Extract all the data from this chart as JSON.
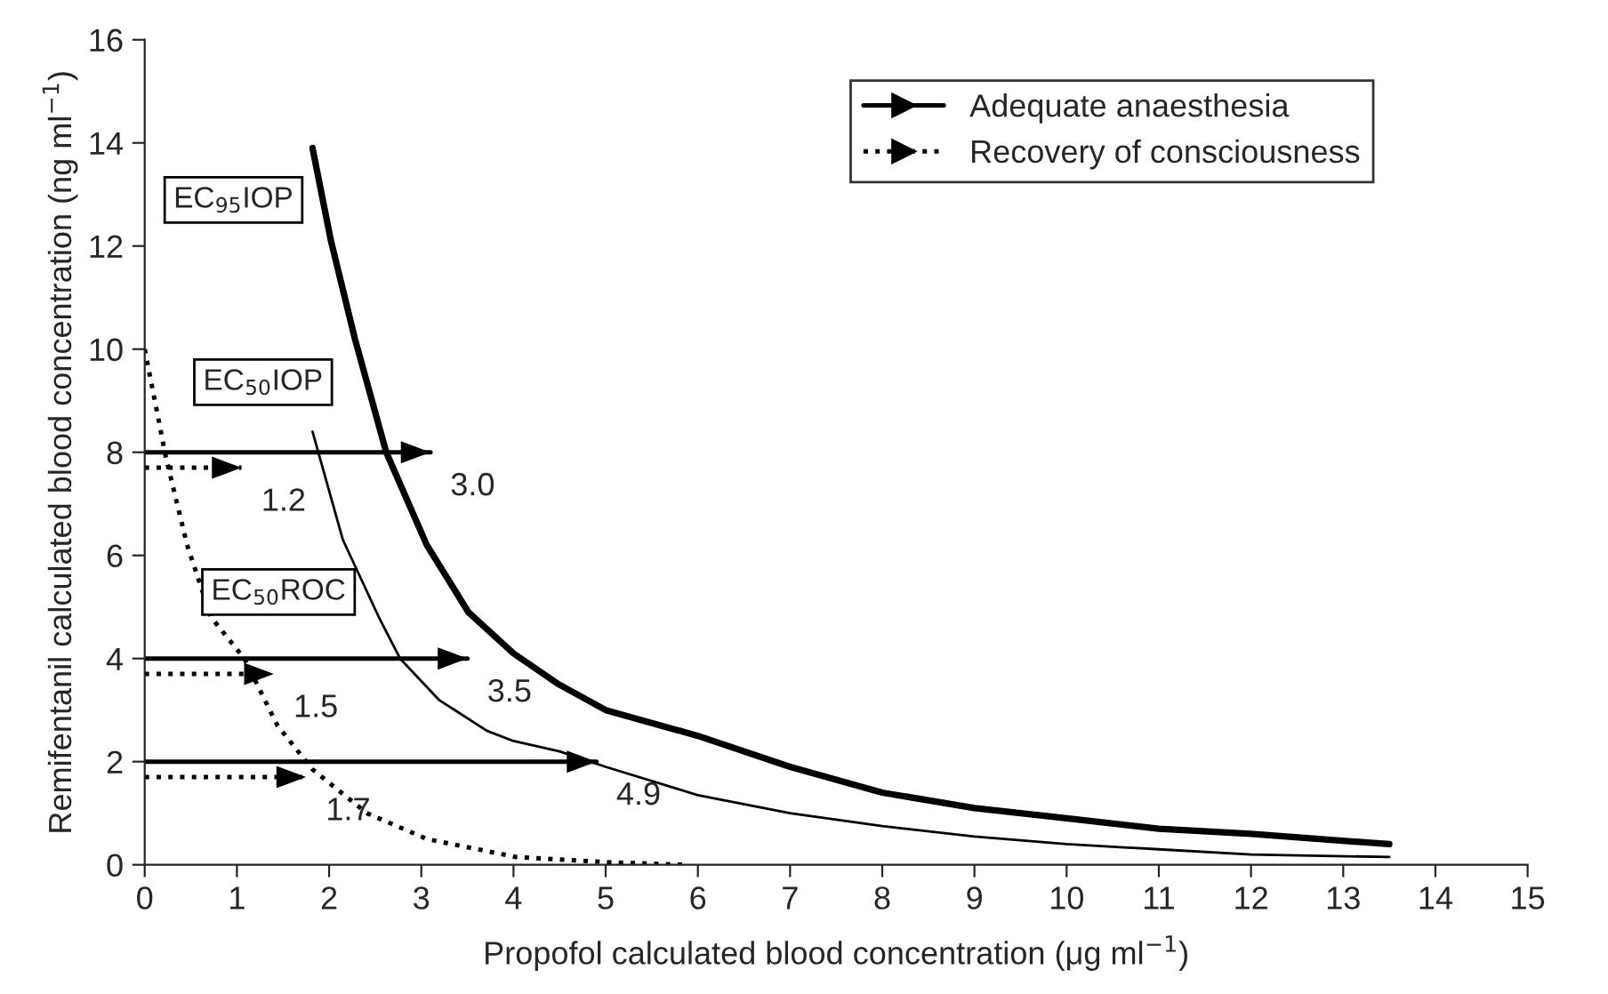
{
  "chart_data": {
    "type": "line",
    "xlabel": "Propofol calculated blood concentration (μg ml$^{−1}$)",
    "ylabel": "Remifentanil calculated blood concentration (ng ml$^{−1}$)",
    "xlim": [
      0,
      15
    ],
    "xticks": [
      0,
      1,
      2,
      3,
      4,
      5,
      6,
      7,
      8,
      9,
      10,
      11,
      12,
      13,
      14,
      15
    ],
    "ylim": [
      0,
      16
    ],
    "yticks": [
      0,
      2,
      4,
      6,
      8,
      10,
      12,
      14,
      16
    ],
    "grid": false,
    "legend": "top right",
    "marker": "none",
    "series": [
      {
        "color": "#000000",
        "line_style": "solid",
        "x": [
          1.82,
          2.02,
          2.28,
          2.62,
          3.06,
          3.51,
          4.0,
          4.49,
          5.0,
          6,
          7,
          8,
          9,
          10,
          11,
          12,
          13.5
        ],
        "values": [
          13.9,
          12.1,
          10.2,
          8.0,
          6.2,
          4.9,
          4.1,
          3.5,
          3.0,
          2.5,
          1.9,
          1.4,
          1.1,
          0.9,
          0.7,
          0.6,
          0.4
        ]
      },
      {
        "color": "#000000",
        "line_style": "solid",
        "x": [
          1.82,
          2.15,
          2.54,
          2.77,
          3.19,
          3.71,
          4.0,
          4.5,
          5.0,
          6,
          7,
          8,
          9,
          10,
          11,
          12,
          13.5
        ],
        "values": [
          8.4,
          6.3,
          4.8,
          4.0,
          3.2,
          2.6,
          2.4,
          2.2,
          1.9,
          1.35,
          1.0,
          0.75,
          0.55,
          0.4,
          0.3,
          0.2,
          0.15
        ]
      },
      {
        "color": "#000000",
        "line_style": "dotted",
        "x": [
          0,
          0.23,
          0.46,
          0.72,
          1.08,
          1.44,
          1.82,
          2.41,
          3.06,
          4.03,
          5.0,
          5.85
        ],
        "values": [
          10.0,
          7.9,
          6.2,
          4.8,
          4.0,
          2.7,
          1.85,
          1.0,
          0.5,
          0.15,
          0.05,
          0
        ]
      },
      {
        "name": "Adequate anaesthesia",
        "color": "#000000",
        "line_style": "solid",
        "x": [
          0,
          3.1,
          null,
          0,
          3.5,
          null,
          0,
          4.9
        ],
        "values": [
          8,
          8,
          null,
          4,
          4,
          null,
          2,
          2
        ]
      },
      {
        "name": "Recovery of consciousness",
        "color": "#000000",
        "line_style": "dotted",
        "x": [
          0,
          1.05,
          null,
          0,
          1.4,
          null,
          0,
          1.75
        ],
        "values": [
          7.7,
          7.7,
          null,
          3.7,
          3.7,
          null,
          1.7,
          1.7
        ]
      }
    ],
    "annotations": [
      {
        "text": "EC$_{95}$IOP",
        "x": 1.82,
        "y": 13.9
      },
      {
        "text": "EC$_{50}$IOP",
        "x": 1.82,
        "y": 8.4
      },
      {
        "text": "EC$_{50}$ROC",
        "x": 0.46,
        "y": 6.2
      },
      {
        "text": "3.0",
        "x": 3.1,
        "y": 8
      },
      {
        "text": "3.5",
        "x": 3.5,
        "y": 4
      },
      {
        "text": "4.9",
        "x": 4.9,
        "y": 2
      },
      {
        "text": "1.2",
        "x": 1.05,
        "y": 7.7
      },
      {
        "text": "1.5",
        "x": 1.4,
        "y": 3.7
      },
      {
        "text": "1.7",
        "x": 1.75,
        "y": 1.7
      }
    ]
  }
}
